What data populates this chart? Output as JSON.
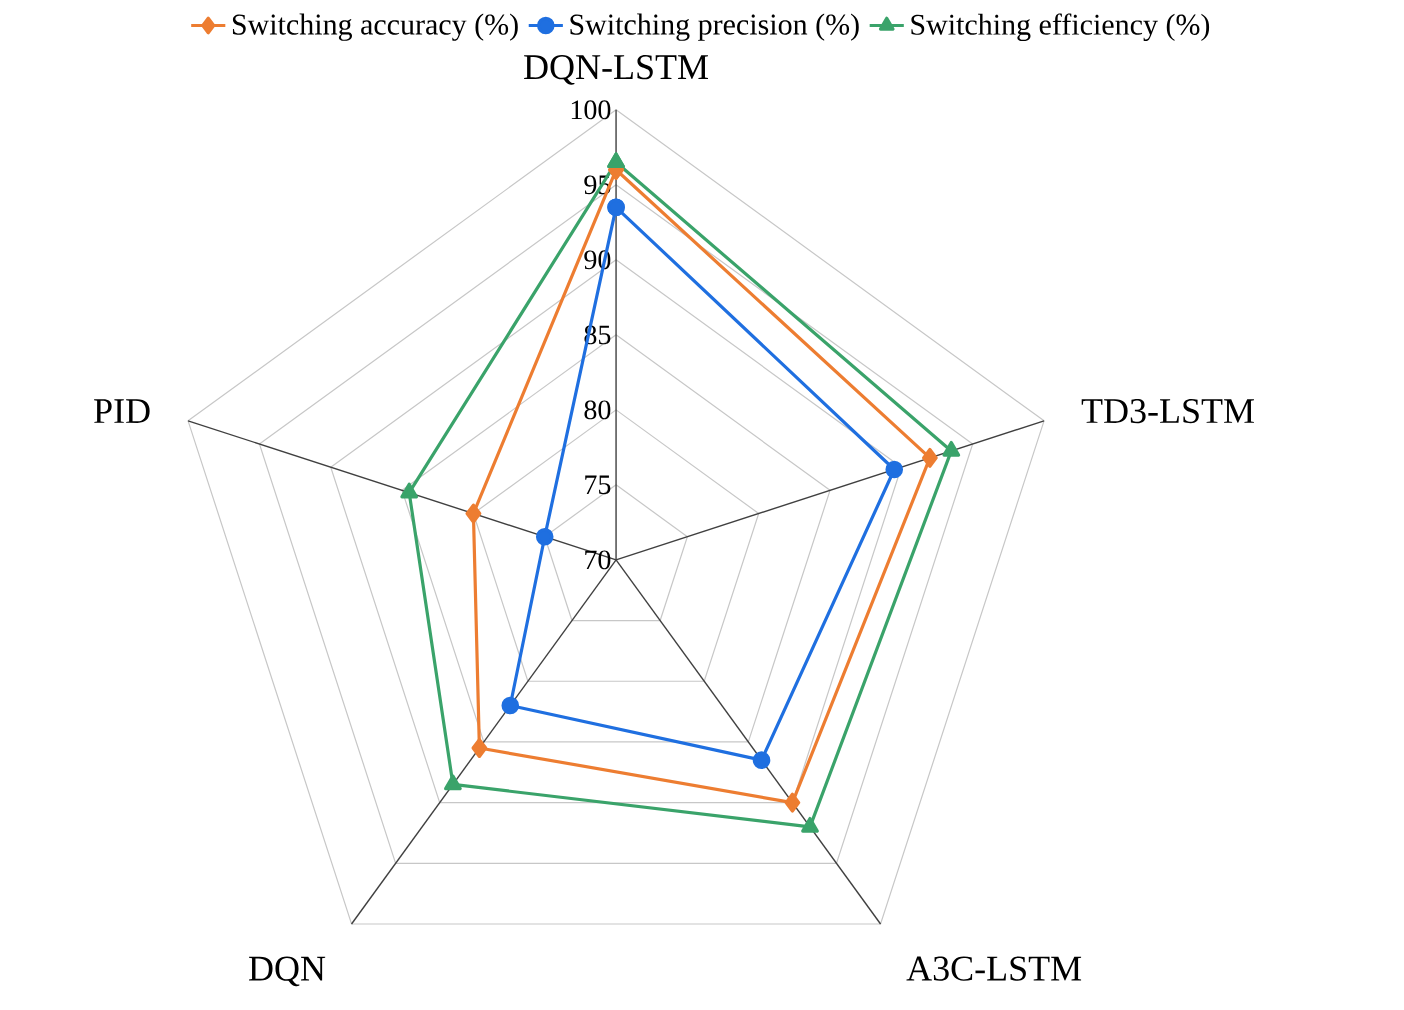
{
  "chart_data": {
    "type": "radar",
    "categories": [
      "DQN-LSTM",
      "TD3-LSTM",
      "A3C-LSTM",
      "DQN",
      "PID"
    ],
    "ylim": [
      70,
      100
    ],
    "yticks": [
      70,
      75,
      80,
      85,
      90,
      95,
      100
    ],
    "grid": true,
    "legend": "top",
    "series": [
      {
        "name": "Switching accuracy (%)",
        "color": "#ed7d31",
        "marker": "diamond",
        "values": [
          96,
          92,
          90,
          85.5,
          80
        ]
      },
      {
        "name": "Switching precision (%)",
        "color": "#1f6fe0",
        "marker": "circle",
        "values": [
          93.5,
          89.5,
          86.5,
          82,
          75
        ]
      },
      {
        "name": "Switching efficiency (%)",
        "color": "#3aa36a",
        "marker": "triangle",
        "values": [
          96.5,
          93.5,
          92,
          88.5,
          84.5
        ]
      }
    ]
  }
}
